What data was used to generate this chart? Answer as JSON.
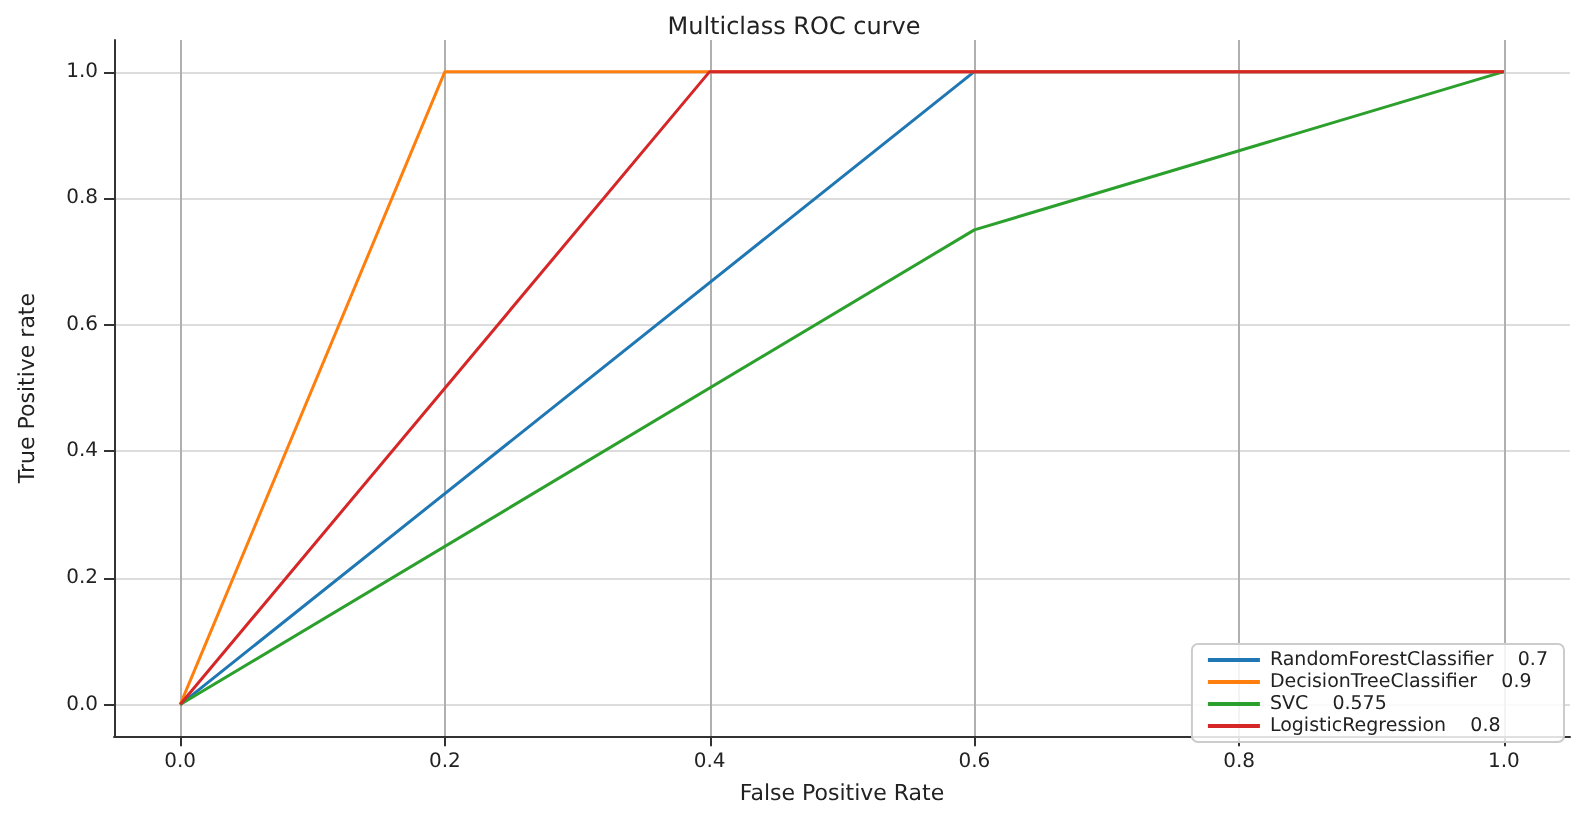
{
  "chart_data": {
    "type": "line",
    "title": "Multiclass ROC curve",
    "xlabel": "False Positive Rate",
    "ylabel": "True Positive rate",
    "series": [
      {
        "name": "RandomForestClassifier    0.7",
        "color": "#1f77b4",
        "x": [
          0,
          0.6,
          1
        ],
        "values": [
          0,
          1,
          1
        ]
      },
      {
        "name": "DecisionTreeClassifier    0.9",
        "color": "#ff7f0e",
        "x": [
          0,
          0.2,
          1
        ],
        "values": [
          0,
          1,
          1
        ]
      },
      {
        "name": "SVC    0.575",
        "color": "#2ca02c",
        "x": [
          0,
          0.6,
          1
        ],
        "values": [
          0,
          0.75,
          1
        ]
      },
      {
        "name": "LogisticRegression    0.8",
        "color": "#d62728",
        "x": [
          0,
          0.4,
          1
        ],
        "values": [
          0,
          1,
          1
        ]
      }
    ],
    "xlim": [
      -0.05,
      1.05
    ],
    "ylim": [
      -0.05,
      1.05
    ],
    "xticks": [
      {
        "value": 0,
        "label": "0.0"
      },
      {
        "value": 0.2,
        "label": "0.2"
      },
      {
        "value": 0.4,
        "label": "0.4"
      },
      {
        "value": 0.6,
        "label": "0.6"
      },
      {
        "value": 0.8,
        "label": "0.8"
      },
      {
        "value": 1,
        "label": "1.0"
      }
    ],
    "yticks": [
      {
        "value": 0,
        "label": "0.0"
      },
      {
        "value": 0.2,
        "label": "0.2"
      },
      {
        "value": 0.4,
        "label": "0.4"
      },
      {
        "value": 0.6,
        "label": "0.6"
      },
      {
        "value": 0.8,
        "label": "0.8"
      },
      {
        "value": 1,
        "label": "1.0"
      }
    ],
    "grid": true,
    "legend": "bottom right",
    "marker": "none",
    "line_style": "solid"
  }
}
